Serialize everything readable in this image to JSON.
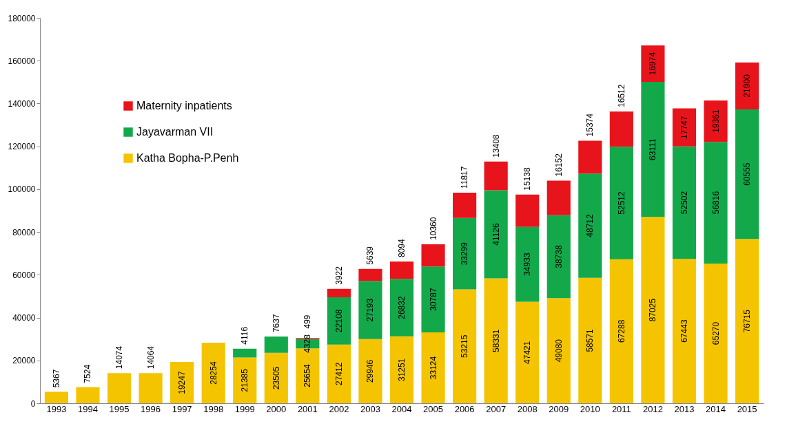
{
  "chart_data": {
    "type": "bar",
    "stacked": true,
    "categories": [
      "1993",
      "1994",
      "1995",
      "1996",
      "1997",
      "1998",
      "1999",
      "2000",
      "2001",
      "2002",
      "2003",
      "2004",
      "2005",
      "2006",
      "2007",
      "2008",
      "2009",
      "2010",
      "2011",
      "2012",
      "2013",
      "2014",
      "2015"
    ],
    "series": [
      {
        "name": "Katha Bopha-P.Penh",
        "color": "#f5c400",
        "values": [
          5367,
          7524,
          14074,
          14064,
          19247,
          28254,
          21385,
          23505,
          25654,
          27412,
          29946,
          31251,
          33124,
          53215,
          58331,
          47421,
          49080,
          58571,
          67288,
          87025,
          67443,
          65270,
          76715
        ]
      },
      {
        "name": "Jayavarman VII",
        "color": "#13a94b",
        "values": [
          null,
          null,
          null,
          null,
          null,
          null,
          4116,
          7637,
          4328,
          22108,
          27193,
          26832,
          30787,
          33299,
          41126,
          34933,
          38738,
          48712,
          52512,
          63111,
          52502,
          56816,
          60555
        ]
      },
      {
        "name": "Maternity inpatients",
        "color": "#e8141b",
        "values": [
          null,
          null,
          null,
          null,
          null,
          null,
          null,
          null,
          499,
          3922,
          5639,
          8094,
          10360,
          11817,
          13408,
          15138,
          16152,
          15374,
          16512,
          16974,
          17747,
          19361,
          21900
        ]
      }
    ],
    "ylim": [
      0,
      180000
    ],
    "yticks": [
      0,
      20000,
      40000,
      60000,
      80000,
      100000,
      120000,
      140000,
      160000,
      180000
    ],
    "grid": false,
    "legend": "top left",
    "data_labels": true
  }
}
